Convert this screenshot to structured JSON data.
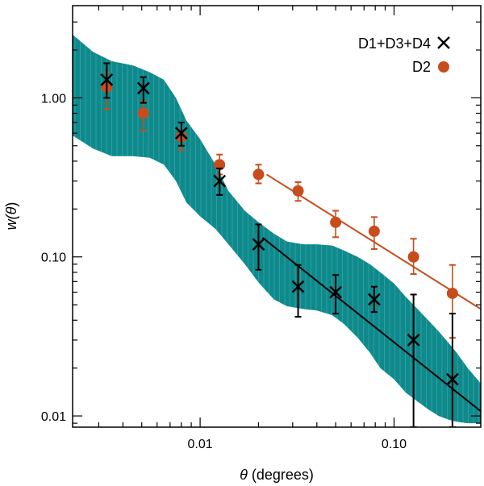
{
  "chart_data": {
    "type": "scatter",
    "title": "",
    "xlabel": "θ (degrees)",
    "xlabel_symbol": "θ",
    "xlabel_unit": " (degrees)",
    "ylabel": "w(θ)",
    "ylabel_prefix": "w(",
    "ylabel_symbol": "θ",
    "ylabel_suffix": ")",
    "xscale": "log",
    "yscale": "log",
    "xlim": [
      0.0022,
      0.28
    ],
    "ylim": [
      0.0085,
      3.8
    ],
    "x_ticks": [
      {
        "value": 0.01,
        "label": "0.01"
      },
      {
        "value": 0.1,
        "label": "0.10"
      }
    ],
    "y_ticks": [
      {
        "value": 0.01,
        "label": "0.01"
      },
      {
        "value": 0.1,
        "label": "0.10"
      },
      {
        "value": 1.0,
        "label": "1.00"
      }
    ],
    "legend_position": "top-right",
    "colors": {
      "band": "#0e8a8c",
      "band_hatch": "#7fc4c6",
      "d2": "#c84d1c",
      "d1": "#000000"
    },
    "band": {
      "name": "model band",
      "x": [
        0.0022,
        0.0028,
        0.0035,
        0.0045,
        0.0055,
        0.0065,
        0.0075,
        0.0085,
        0.01,
        0.012,
        0.014,
        0.017,
        0.02,
        0.024,
        0.028,
        0.034,
        0.04,
        0.048,
        0.055,
        0.065,
        0.075,
        0.085,
        0.1,
        0.115,
        0.13,
        0.15,
        0.17,
        0.19,
        0.21,
        0.24,
        0.28
      ],
      "upper": [
        2.5,
        1.95,
        1.7,
        1.6,
        1.45,
        1.3,
        1.0,
        0.72,
        0.55,
        0.38,
        0.26,
        0.195,
        0.165,
        0.14,
        0.125,
        0.12,
        0.12,
        0.118,
        0.11,
        0.1,
        0.09,
        0.08,
        0.068,
        0.056,
        0.048,
        0.04,
        0.034,
        0.029,
        0.025,
        0.02,
        0.016
      ],
      "lower": [
        0.58,
        0.48,
        0.43,
        0.43,
        0.42,
        0.38,
        0.3,
        0.22,
        0.18,
        0.15,
        0.12,
        0.09,
        0.069,
        0.054,
        0.049,
        0.047,
        0.046,
        0.043,
        0.038,
        0.031,
        0.025,
        0.02,
        0.017,
        0.014,
        0.0125,
        0.011,
        0.01,
        0.0095,
        0.0092,
        0.009,
        0.009
      ]
    },
    "series": [
      {
        "name": "D1+D3+D4",
        "marker": "x",
        "x": [
          0.0033,
          0.0051,
          0.008,
          0.0126,
          0.02,
          0.032,
          0.05,
          0.079,
          0.126,
          0.2
        ],
        "y": [
          1.3,
          1.15,
          0.6,
          0.3,
          0.12,
          0.065,
          0.06,
          0.054,
          0.03,
          0.017
        ],
        "yerr_low": [
          1.0,
          0.93,
          0.5,
          0.245,
          0.083,
          0.042,
          0.044,
          0.045,
          0.0085,
          0.0085
        ],
        "yerr_high": [
          1.65,
          1.35,
          0.7,
          0.36,
          0.16,
          0.089,
          0.077,
          0.065,
          0.058,
          0.044
        ],
        "fit": {
          "x": [
            0.021,
            0.28
          ],
          "y": [
            0.132,
            0.0107
          ]
        }
      },
      {
        "name": "D2",
        "marker": "circle",
        "x": [
          0.0033,
          0.0051,
          0.008,
          0.0126,
          0.02,
          0.032,
          0.05,
          0.079,
          0.126,
          0.2
        ],
        "y": [
          1.17,
          0.8,
          0.57,
          0.38,
          0.33,
          0.26,
          0.165,
          0.145,
          0.1,
          0.059
        ],
        "yerr_low": [
          0.85,
          0.62,
          0.47,
          0.33,
          0.29,
          0.225,
          0.133,
          0.112,
          0.078,
          0.031
        ],
        "yerr_high": [
          1.45,
          0.95,
          0.7,
          0.44,
          0.38,
          0.295,
          0.195,
          0.178,
          0.13,
          0.089
        ],
        "fit": {
          "x": [
            0.022,
            0.28
          ],
          "y": [
            0.33,
            0.047
          ]
        }
      }
    ],
    "legend": [
      {
        "label": "D1+D3+D4",
        "marker": "x"
      },
      {
        "label": "D2",
        "marker": "circle"
      }
    ]
  }
}
